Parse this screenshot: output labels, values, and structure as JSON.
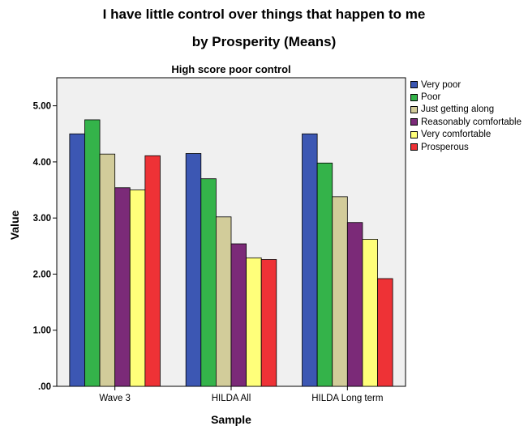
{
  "chart_data": {
    "type": "bar",
    "title": "I have little control over things that happen to me",
    "subtitle": "by Prosperity (Means)",
    "plot_title": "High score poor control",
    "xlabel": "Sample",
    "ylabel": "Value",
    "categories": [
      "Wave 3",
      "HILDA All",
      "HILDA Long term"
    ],
    "ylim": [
      0,
      5
    ],
    "yticks": [
      0,
      1,
      2,
      3,
      4,
      5
    ],
    "ytick_labels": [
      ".00",
      "1.00",
      "2.00",
      "3.00",
      "4.00",
      "5.00"
    ],
    "legend_position": "right",
    "series": [
      {
        "name": "Very poor",
        "color": "#3C57B3",
        "values": [
          4.5,
          4.15,
          4.5
        ]
      },
      {
        "name": "Poor",
        "color": "#34B34A",
        "values": [
          4.75,
          3.7,
          3.98
        ]
      },
      {
        "name": "Just getting along",
        "color": "#D2CC9A",
        "values": [
          4.14,
          3.02,
          3.38
        ]
      },
      {
        "name": "Reasonably comfortable",
        "color": "#7B2A78",
        "values": [
          3.54,
          2.54,
          2.92
        ]
      },
      {
        "name": "Very comfortable",
        "color": "#FFFF7A",
        "values": [
          3.5,
          2.29,
          2.62
        ]
      },
      {
        "name": "Prosperous",
        "color": "#EE3236",
        "values": [
          4.11,
          2.26,
          1.92
        ]
      }
    ]
  }
}
